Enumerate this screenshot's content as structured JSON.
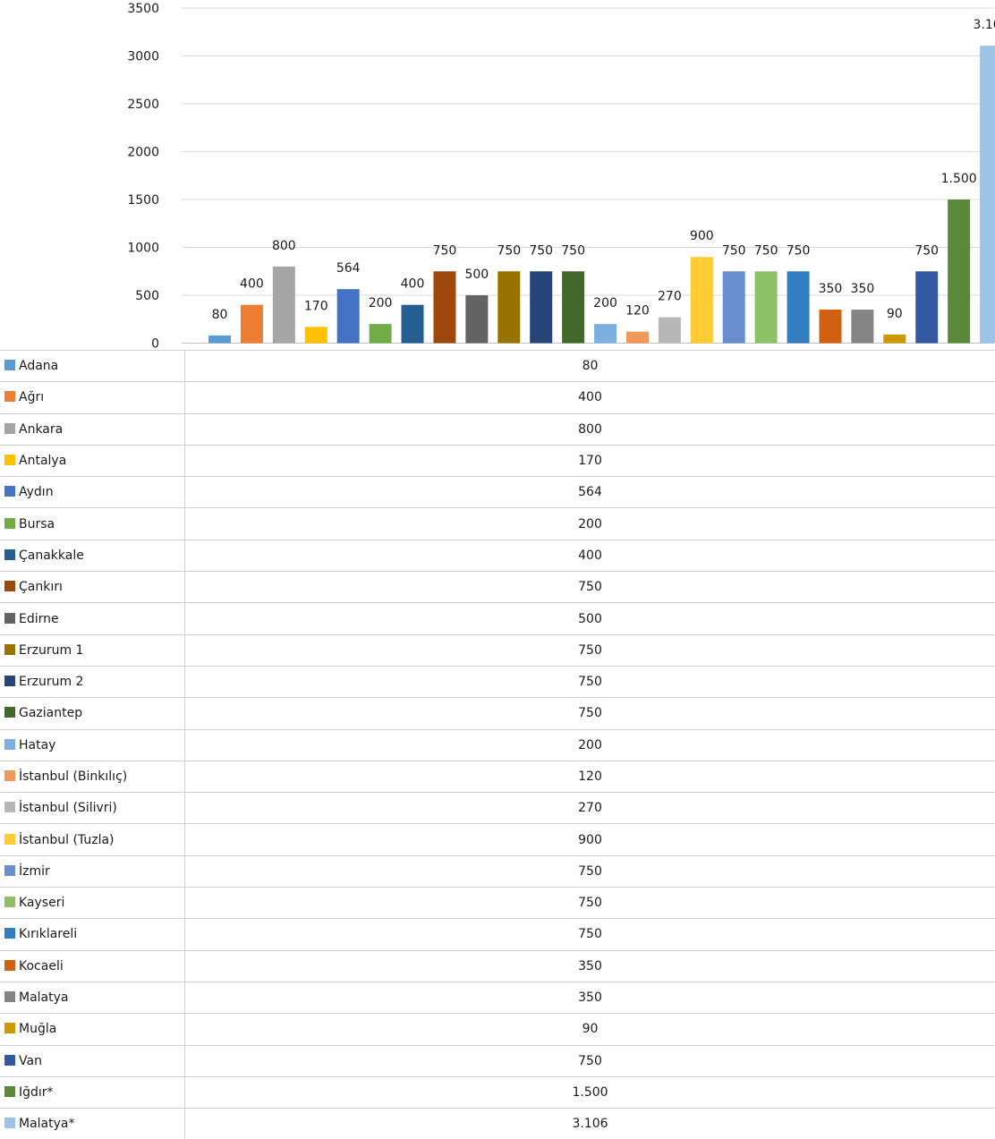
{
  "chart_data": {
    "type": "bar",
    "ylim": [
      0,
      3500
    ],
    "yticks": [
      0,
      500,
      1000,
      1500,
      2000,
      2500,
      3000,
      3500
    ],
    "grid": true,
    "legend": "table-below",
    "categories": [
      "Adana",
      "Ağrı",
      "Ankara",
      "Antalya",
      "Aydın",
      "Bursa",
      "Çanakkale",
      "Çankırı",
      "Edirne",
      "Erzurum 1",
      "Erzurum 2",
      "Gaziantep",
      "Hatay",
      "İstanbul (Binkılıç)",
      "İstanbul (Silivri)",
      "İstanbul (Tuzla)",
      "İzmir",
      "Kayseri",
      "Kırıklareli",
      "Kocaeli",
      "Malatya",
      "Muğla",
      "Van",
      "Iğdır*",
      "Malatya*"
    ],
    "values": [
      80,
      400,
      800,
      170,
      564,
      200,
      400,
      750,
      500,
      750,
      750,
      750,
      200,
      120,
      270,
      900,
      750,
      750,
      750,
      350,
      350,
      90,
      750,
      1500,
      3106
    ],
    "labels": [
      "80",
      "400",
      "800",
      "170",
      "564",
      "200",
      "400",
      "750",
      "500",
      "750",
      "750",
      "750",
      "200",
      "120",
      "270",
      "900",
      "750",
      "750",
      "750",
      "350",
      "350",
      "90",
      "750",
      "1.500",
      "3.106"
    ],
    "colors": [
      "#5b9bd5",
      "#ed7d31",
      "#a5a5a5",
      "#ffc000",
      "#4472c4",
      "#70ad47",
      "#255e91",
      "#9e480e",
      "#636363",
      "#997300",
      "#264478",
      "#43682b",
      "#7cafdd",
      "#f1975a",
      "#b7b7b7",
      "#ffcd33",
      "#698ed0",
      "#8cc168",
      "#327dc2",
      "#d26012",
      "#848484",
      "#cc9a00",
      "#335aa1",
      "#5a8a39",
      "#9dc3e6"
    ]
  }
}
